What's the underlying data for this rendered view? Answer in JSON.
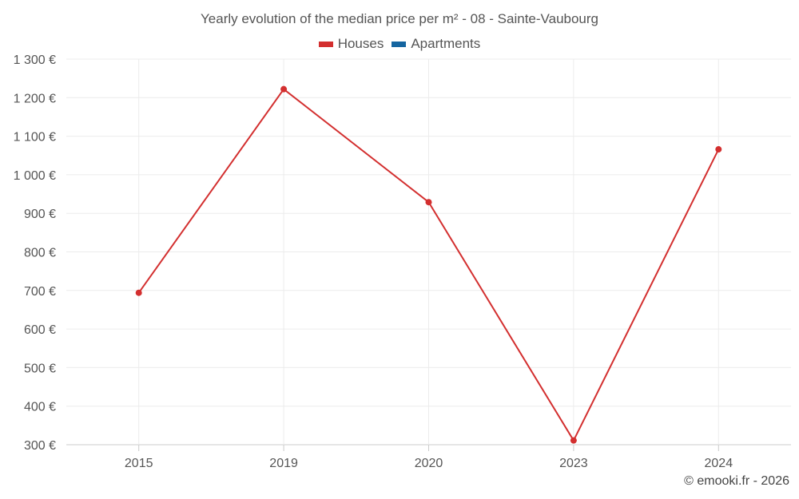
{
  "chart_data": {
    "type": "line",
    "title": "Yearly evolution of the median price per m² - 08 - Sainte-Vaubourg",
    "categories": [
      "2015",
      "2019",
      "2020",
      "2023",
      "2024"
    ],
    "series": [
      {
        "name": "Houses",
        "color": "#d32f2f",
        "values": [
          694,
          1222,
          929,
          311,
          1066
        ]
      },
      {
        "name": "Apartments",
        "color": "#1565a0",
        "values": [
          null,
          null,
          null,
          null,
          null
        ]
      }
    ],
    "ylim": [
      300,
      1300
    ],
    "yticks": [
      300,
      400,
      500,
      600,
      700,
      800,
      900,
      1000,
      1100,
      1200,
      1300
    ],
    "ytick_labels": [
      "300 €",
      "400 €",
      "500 €",
      "600 €",
      "700 €",
      "800 €",
      "900 €",
      "1 000 €",
      "1 100 €",
      "1 200 €",
      "1 300 €"
    ],
    "legend_position": "top-center",
    "grid": true
  },
  "credit": "© emooki.fr - 2026"
}
